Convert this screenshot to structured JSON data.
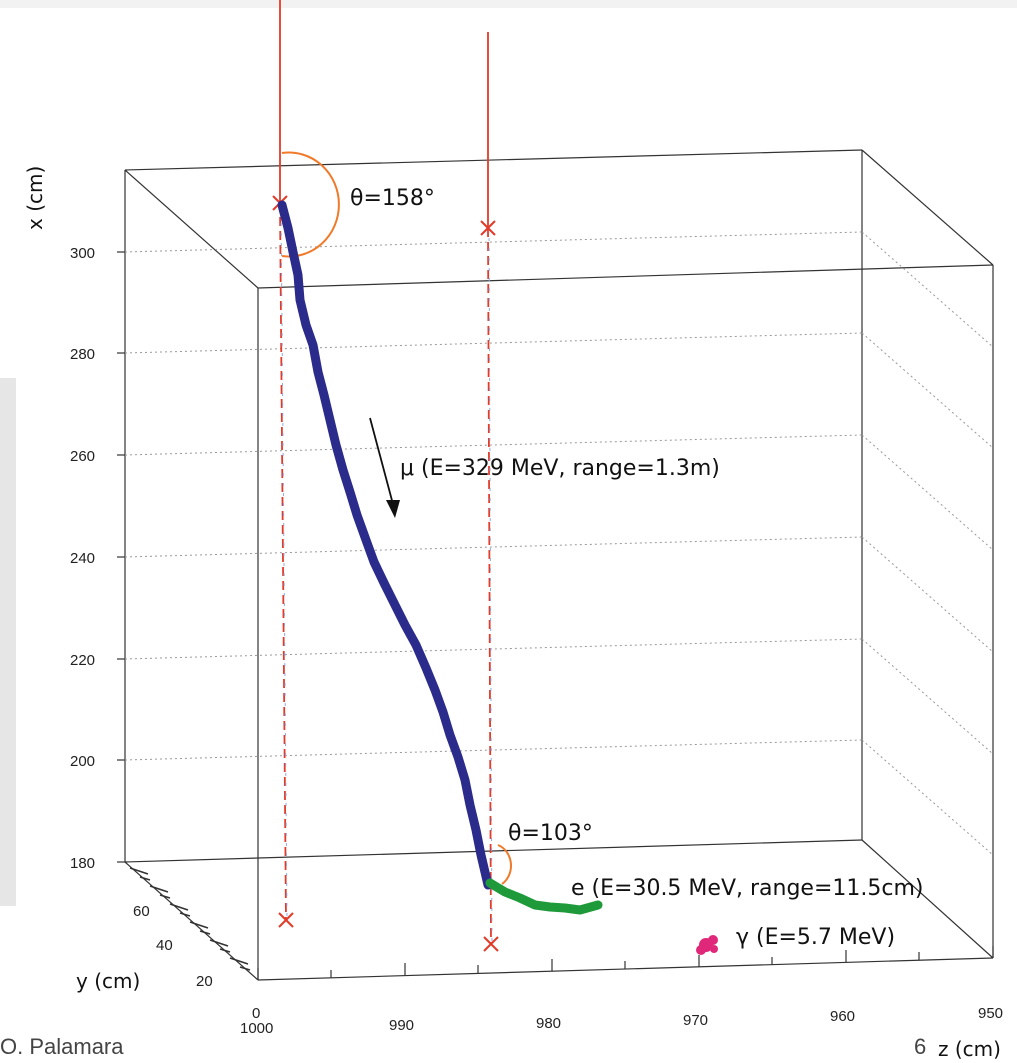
{
  "labels": {
    "x_axis": "x (cm)",
    "y_axis": "y (cm)",
    "z_axis": "z (cm)",
    "theta1": "θ=158°",
    "theta2": "θ=103°",
    "muon": "μ (E=329 MeV, range=1.3m)",
    "electron": "e (E=30.5 MeV, range=11.5cm)",
    "gamma": "γ (E=5.7 MeV)"
  },
  "x_ticks": [
    "300",
    "280",
    "260",
    "240",
    "220",
    "200",
    "180"
  ],
  "y_ticks": [
    "60",
    "40",
    "20"
  ],
  "z_ticks": [
    "1000",
    "990",
    "980",
    "970",
    "960",
    "950"
  ],
  "z_origin_label": "0",
  "footer": {
    "author": "O. Palamara",
    "page": "6"
  },
  "colors": {
    "muon": "#2b2b8c",
    "electron": "#1f9a3a",
    "gamma": "#e0287a",
    "beam": "#e23b2a",
    "arc": "#f07a2a"
  }
}
